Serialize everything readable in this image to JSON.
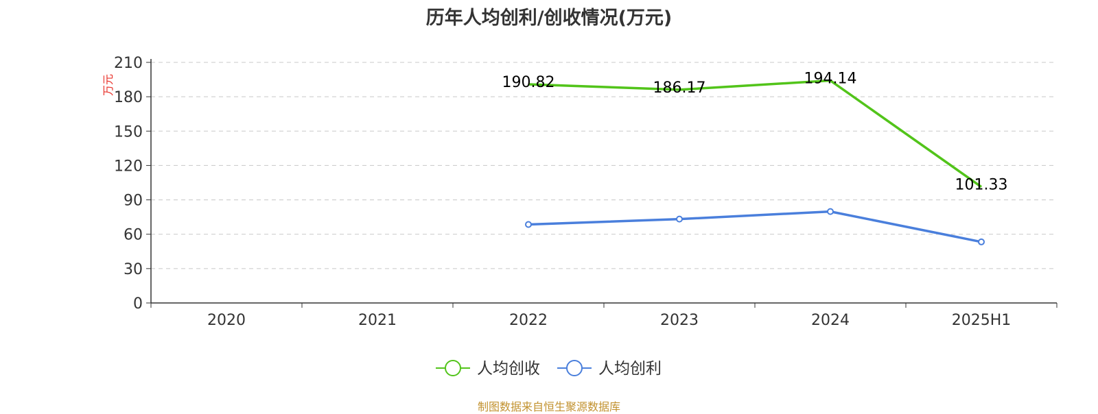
{
  "chart_data": {
    "type": "line",
    "title": "历年人均创利/创收情况(万元)",
    "ylabel": "万元",
    "categories": [
      "2020",
      "2021",
      "2022",
      "2023",
      "2024",
      "2025H1"
    ],
    "ylim": [
      0,
      210
    ],
    "yticks": [
      0,
      30,
      60,
      90,
      120,
      150,
      180,
      210
    ],
    "grid": "horizontal-dashed",
    "legend_position": "bottom",
    "series": [
      {
        "name": "人均创收",
        "color": "#52c41a",
        "values": [
          null,
          null,
          190.82,
          186.17,
          194.14,
          101.33
        ],
        "labels": true
      },
      {
        "name": "人均创利",
        "color": "#4a7fdc",
        "values": [
          null,
          null,
          68.5,
          73.2,
          79.8,
          53.3
        ],
        "labels": false
      }
    ]
  },
  "ylabel_color": "#e8312a",
  "source": "制图数据来自恒生聚源数据库"
}
